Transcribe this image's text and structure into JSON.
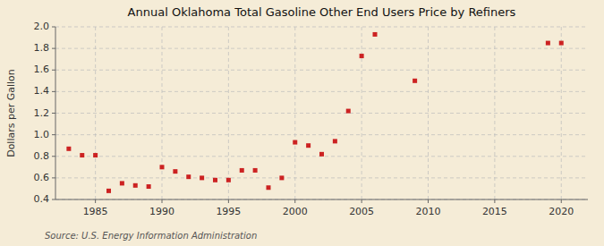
{
  "chart_data": {
    "type": "scatter",
    "title": "Annual Oklahoma Total Gasoline Other End Users Price by Refiners",
    "y_label": "Dollars per Gallon",
    "annotations": [
      "Source: U.S. Energy Information Administration"
    ],
    "x": [
      1983,
      1984,
      1985,
      1986,
      1987,
      1988,
      1989,
      1990,
      1991,
      1992,
      1993,
      1994,
      1995,
      1996,
      1997,
      1998,
      1999,
      2000,
      2001,
      2002,
      2003,
      2004,
      2005,
      2006,
      2009,
      2019,
      2020
    ],
    "values": [
      0.87,
      0.81,
      0.81,
      0.48,
      0.55,
      0.53,
      0.52,
      0.7,
      0.66,
      0.61,
      0.6,
      0.58,
      0.58,
      0.67,
      0.67,
      0.51,
      0.6,
      0.93,
      0.9,
      0.82,
      0.94,
      1.22,
      1.73,
      1.93,
      1.5,
      1.85,
      1.85
    ],
    "color": "#cc2222",
    "marker": "square",
    "xlim": [
      1982,
      2022
    ],
    "ylim": [
      0.4,
      2.0
    ],
    "xticks": [
      1985,
      1990,
      1995,
      2000,
      2005,
      2010,
      2015,
      2020
    ],
    "yticks": [
      0.4,
      0.6,
      0.8,
      {
        "value": 1.0,
        "label": "1.0"
      },
      1.2,
      1.4,
      1.6,
      1.8,
      {
        "value": 2.0,
        "label": "2.0"
      }
    ],
    "grid": true
  }
}
